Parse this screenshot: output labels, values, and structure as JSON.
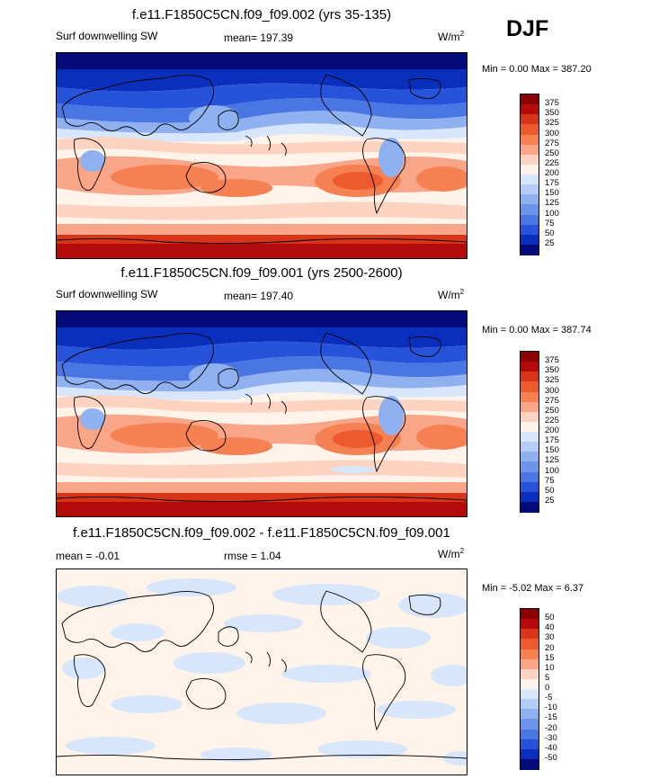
{
  "season": "DJF",
  "panels": [
    {
      "title": "f.e11.F1850C5CN.f09_f09.002 (yrs 35-135)",
      "left_label": "Surf downwelling SW",
      "mean_label": "mean= 197.39",
      "units_base": "W/m",
      "units_sup": "2",
      "minmax": "Min =    0.00 Max = 387.20",
      "levels": [
        "375",
        "350",
        "325",
        "300",
        "275",
        "250",
        "225",
        "200",
        "175",
        "150",
        "125",
        "100",
        "75",
        "50",
        "25"
      ],
      "colors": [
        "#8b0000",
        "#b40a0a",
        "#d8341a",
        "#ec5a2d",
        "#f58152",
        "#f9a587",
        "#fcd3c0",
        "#fff3ea",
        "#d7e6fa",
        "#b4cdf6",
        "#8fb1f0",
        "#6c94ea",
        "#4a76e4",
        "#2752da",
        "#0b2fbd",
        "#040a7a"
      ]
    },
    {
      "title": "f.e11.F1850C5CN.f09_f09.001 (yrs 2500-2600)",
      "left_label": "Surf downwelling SW",
      "mean_label": "mean= 197.40",
      "units_base": "W/m",
      "units_sup": "2",
      "minmax": "Min =    0.00 Max = 387.74",
      "levels": [
        "375",
        "350",
        "325",
        "300",
        "275",
        "250",
        "225",
        "200",
        "175",
        "150",
        "125",
        "100",
        "75",
        "50",
        "25"
      ],
      "colors": [
        "#8b0000",
        "#b40a0a",
        "#d8341a",
        "#ec5a2d",
        "#f58152",
        "#f9a587",
        "#fcd3c0",
        "#fff3ea",
        "#d7e6fa",
        "#b4cdf6",
        "#8fb1f0",
        "#6c94ea",
        "#4a76e4",
        "#2752da",
        "#0b2fbd",
        "#040a7a"
      ]
    },
    {
      "title": "f.e11.F1850C5CN.f09_f09.002 - f.e11.F1850C5CN.f09_f09.001",
      "left_label": "mean =  -0.01",
      "mean_label": "rmse =   1.04",
      "units_base": "W/m",
      "units_sup": "2",
      "minmax": "Min =  -5.02 Max =   6.37",
      "levels": [
        "50",
        "40",
        "30",
        "20",
        "15",
        "10",
        "5",
        "0",
        "-5",
        "-10",
        "-15",
        "-20",
        "-30",
        "-40",
        "-50"
      ],
      "colors": [
        "#8b0000",
        "#b40a0a",
        "#d8341a",
        "#ec5a2d",
        "#f58152",
        "#f9a587",
        "#fcd3c0",
        "#fff3ea",
        "#d7e6fa",
        "#b4cdf6",
        "#8fb1f0",
        "#6c94ea",
        "#4a76e4",
        "#2752da",
        "#0b2fbd",
        "#040a7a"
      ]
    }
  ]
}
